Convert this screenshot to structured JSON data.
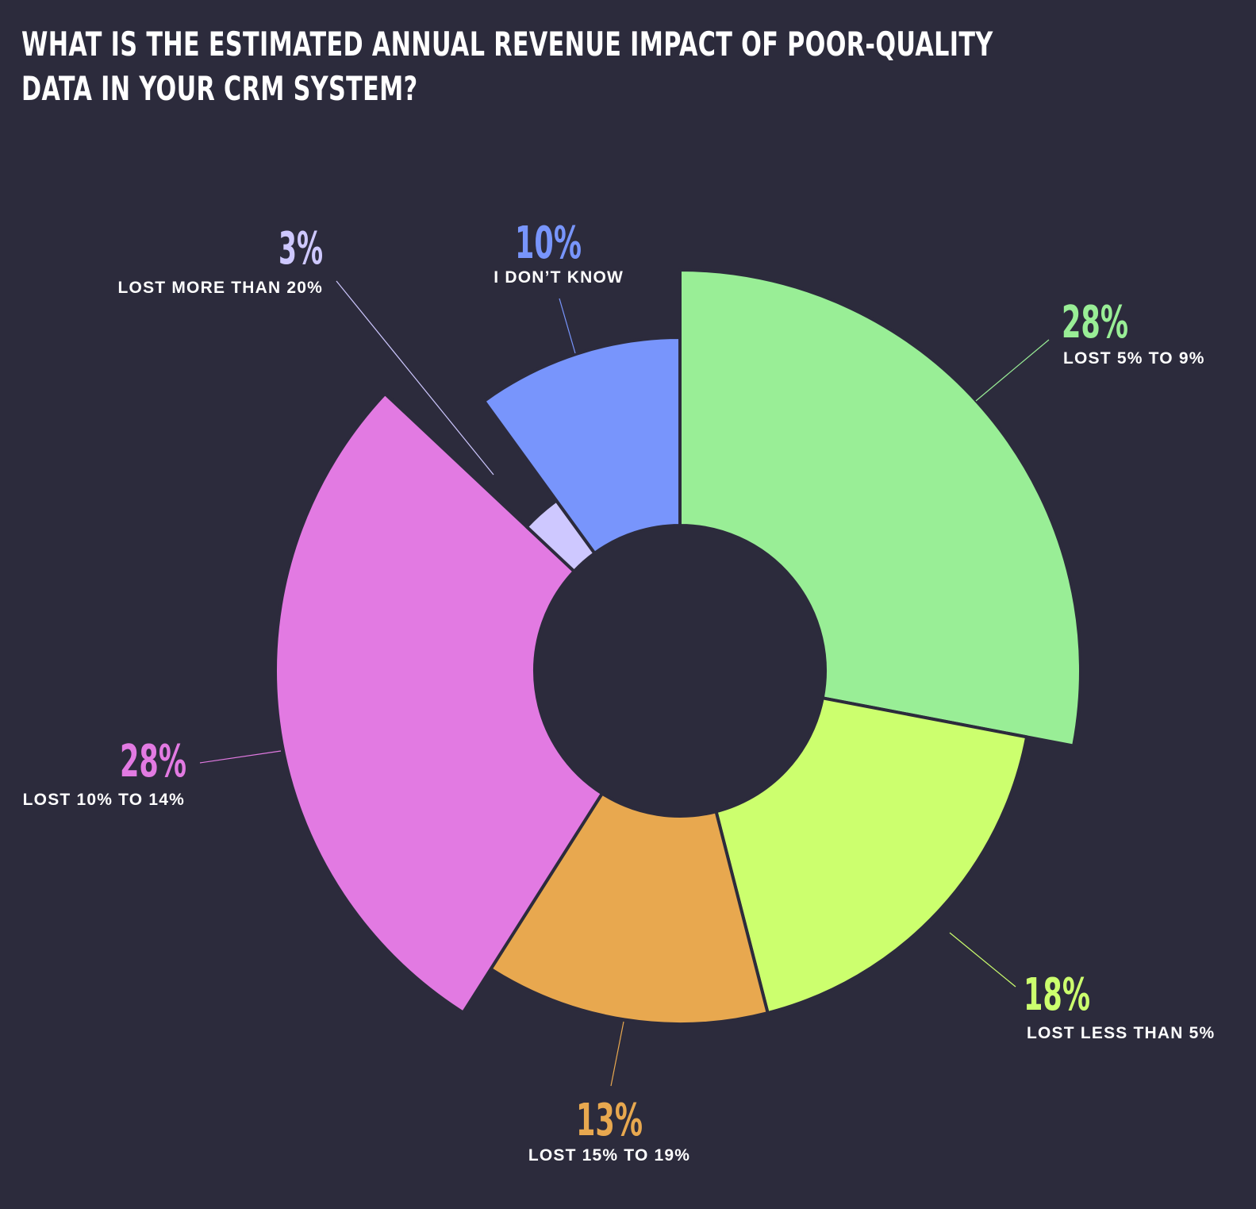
{
  "chart_data": {
    "type": "pie",
    "title": "WHAT IS THE ESTIMATED ANNUAL REVENUE IMPACT OF POOR-QUALITY DATA IN YOUR CRM SYSTEM?",
    "title_lines": [
      "WHAT IS THE ESTIMATED ANNUAL REVENUE IMPACT OF POOR-QUALITY",
      "DATA IN YOUR CRM SYSTEM?"
    ],
    "donut": true,
    "legend": "none",
    "slices": [
      {
        "key": "lost-5-to-9",
        "label": "LOST 5% TO 9%",
        "value": 28,
        "value_label": "28%",
        "color": "#99ee96"
      },
      {
        "key": "lost-less-than-5",
        "label": "LOST LESS THAN 5%",
        "value": 18,
        "value_label": "18%",
        "color": "#ccff6e"
      },
      {
        "key": "lost-15-to-19",
        "label": "LOST 15% TO 19%",
        "value": 13,
        "value_label": "13%",
        "color": "#e8a84f"
      },
      {
        "key": "lost-10-to-14",
        "label": "LOST 10% TO 14%",
        "value": 28,
        "value_label": "28%",
        "color": "#e27ae2"
      },
      {
        "key": "lost-more-than-20",
        "label": "LOST MORE THAN 20%",
        "value": 3,
        "value_label": "3%",
        "color": "#cec8ff"
      },
      {
        "key": "i-dont-know",
        "label": "I DON’T KNOW",
        "value": 10,
        "value_label": "10%",
        "color": "#7895fc"
      }
    ]
  }
}
